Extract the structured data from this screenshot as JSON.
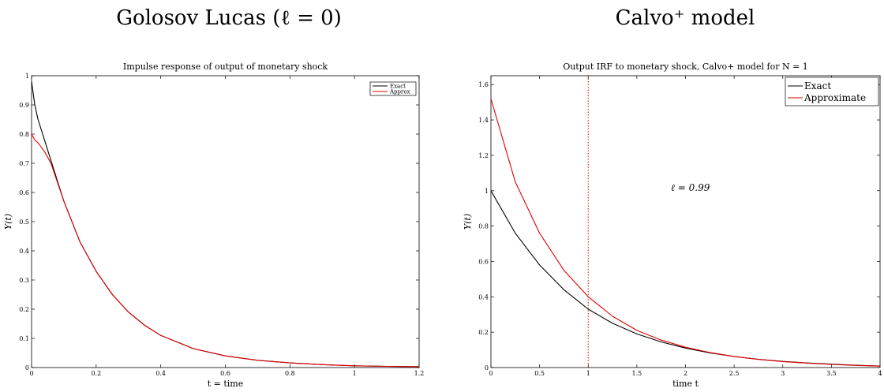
{
  "panels": {
    "left_heading": "Golosov Lucas (ℓ = 0)",
    "right_heading": "Calvo⁺ model"
  },
  "chart_data": [
    {
      "type": "line",
      "title": "Impulse response of output of monetary shock",
      "xlabel": "t = time",
      "ylabel": "Y(t)",
      "xlim": [
        0,
        1.2
      ],
      "ylim": [
        0,
        1
      ],
      "xticks": [
        "0",
        "0.2",
        "0.4",
        "0.6",
        "0.8",
        "1",
        "1.2"
      ],
      "xtick_values": [
        0,
        0.2,
        0.4,
        0.6,
        0.8,
        1,
        1.2
      ],
      "yticks": [
        "0",
        "0.1",
        "0.2",
        "0.3",
        "0.4",
        "0.5",
        "0.6",
        "0.7",
        "0.8",
        "0.9",
        "1"
      ],
      "ytick_values": [
        0,
        0.1,
        0.2,
        0.3,
        0.4,
        0.5,
        0.6,
        0.7,
        0.8,
        0.9,
        1
      ],
      "legend": "top-right",
      "grid": false,
      "series": [
        {
          "name": "Exact",
          "color": "#000000",
          "x": [
            0,
            0.01,
            0.02,
            0.04,
            0.06,
            0.08,
            0.1,
            0.15,
            0.2,
            0.25,
            0.3,
            0.35,
            0.4,
            0.5,
            0.6,
            0.7,
            0.8,
            0.9,
            1.0,
            1.1,
            1.2
          ],
          "y": [
            0.98,
            0.9,
            0.85,
            0.78,
            0.71,
            0.64,
            0.57,
            0.43,
            0.33,
            0.25,
            0.19,
            0.145,
            0.11,
            0.065,
            0.04,
            0.025,
            0.016,
            0.01,
            0.006,
            0.004,
            0.003
          ]
        },
        {
          "name": "Approx",
          "color": "#e00000",
          "x": [
            0,
            0.01,
            0.02,
            0.04,
            0.06,
            0.08,
            0.1,
            0.15,
            0.2,
            0.25,
            0.3,
            0.35,
            0.4,
            0.5,
            0.6,
            0.7,
            0.8,
            0.9,
            1.0,
            1.1,
            1.2
          ],
          "y": [
            0.8,
            0.78,
            0.77,
            0.74,
            0.7,
            0.635,
            0.57,
            0.43,
            0.33,
            0.25,
            0.19,
            0.145,
            0.11,
            0.065,
            0.04,
            0.025,
            0.016,
            0.01,
            0.006,
            0.004,
            0.003
          ]
        }
      ]
    },
    {
      "type": "line",
      "title": "Output IRF to monetary shock, Calvo+ model for N = 1",
      "xlabel": "time t",
      "ylabel": "Y(t)",
      "xlim": [
        0,
        4
      ],
      "ylim": [
        0,
        1.65
      ],
      "xticks": [
        "0",
        "0.5",
        "1",
        "1.5",
        "2",
        "2.5",
        "3",
        "3.5",
        "4"
      ],
      "xtick_values": [
        0,
        0.5,
        1,
        1.5,
        2,
        2.5,
        3,
        3.5,
        4
      ],
      "yticks": [
        "0",
        "0.2",
        "0.4",
        "0.6",
        "0.8",
        "1",
        "1.2",
        "1.4",
        "1.6"
      ],
      "ytick_values": [
        0,
        0.2,
        0.4,
        0.6,
        0.8,
        1,
        1.2,
        1.4,
        1.6
      ],
      "legend": "top-right",
      "grid": false,
      "annotation": "ℓ = 0.99",
      "vline_x": 1,
      "vline_color": "#e00000",
      "series": [
        {
          "name": "Exact",
          "color": "#000000",
          "x": [
            0,
            0.25,
            0.5,
            0.75,
            1,
            1.25,
            1.5,
            1.75,
            2,
            2.25,
            2.5,
            2.75,
            3,
            3.25,
            3.5,
            3.75,
            4
          ],
          "y": [
            1,
            0.76,
            0.58,
            0.44,
            0.33,
            0.25,
            0.19,
            0.145,
            0.11,
            0.083,
            0.063,
            0.047,
            0.035,
            0.026,
            0.019,
            0.013,
            0.009
          ]
        },
        {
          "name": "Approximate",
          "color": "#e00000",
          "x": [
            0,
            0.25,
            0.5,
            0.75,
            1,
            1.25,
            1.5,
            1.75,
            2,
            2.25,
            2.5,
            2.75,
            3,
            3.25,
            3.5,
            3.75,
            4
          ],
          "y": [
            1.52,
            1.05,
            0.76,
            0.55,
            0.4,
            0.29,
            0.21,
            0.155,
            0.115,
            0.085,
            0.063,
            0.046,
            0.034,
            0.025,
            0.018,
            0.012,
            0.008
          ]
        }
      ]
    }
  ]
}
